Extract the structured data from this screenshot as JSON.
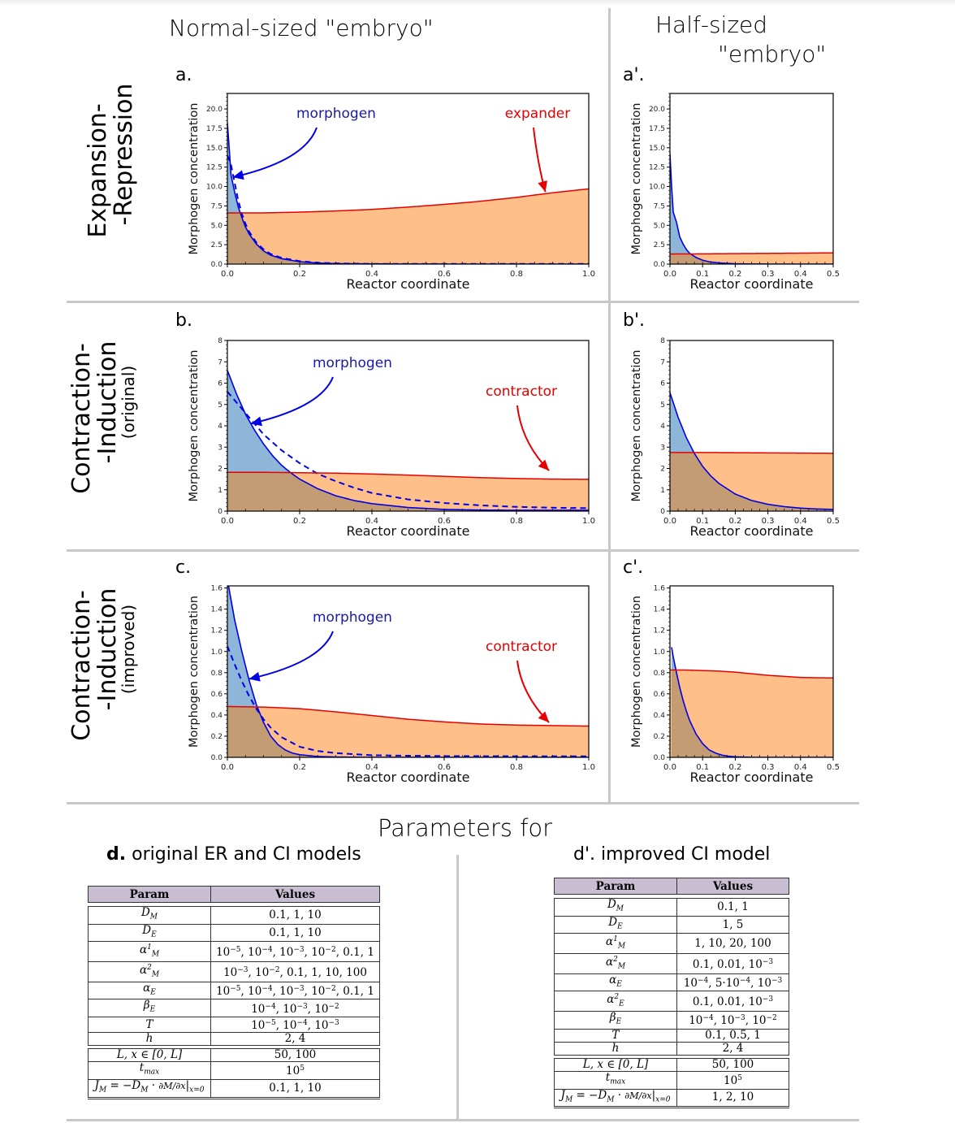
{
  "headers": {
    "normal": "Normal-sized \"embryo\"",
    "half_line1": "Half-sized",
    "half_line2": "\"embryo\"",
    "parameters_for": "Parameters for"
  },
  "rows": [
    {
      "l1": "Expansion-",
      "l2": "-Repression",
      "l3": ""
    },
    {
      "l1": "Contraction-",
      "l2": "-Induction",
      "l3": "(original)"
    },
    {
      "l1": "Contraction-",
      "l2": "-Induction",
      "l3": "(improved)"
    }
  ],
  "colors": {
    "morphogen_line": "#0000e6",
    "morphogen_label": "#1a1aa6",
    "partner_line": "#e60000",
    "morphogen_fill": "#8db6d8",
    "partner_fill": "#ffbf88",
    "overlap_fill": "#c39c74",
    "table_header": "#c9bdd2"
  },
  "chart_data": [
    {
      "id": "a",
      "panel_label": "a.",
      "type": "area",
      "xlabel": "Reactor coordinate",
      "ylabel": "Morphogen concentration",
      "xlim": [
        0,
        1.0
      ],
      "ylim": [
        0,
        22
      ],
      "xticks": [
        "0.0",
        "0.2",
        "0.4",
        "0.6",
        "0.8",
        "1.0"
      ],
      "xtick_values": [
        0,
        0.2,
        0.4,
        0.6,
        0.8,
        1.0
      ],
      "yticks": [
        "0.0",
        "2.5",
        "5.0",
        "7.5",
        "10.0",
        "12.5",
        "15.0",
        "17.5",
        "20.0"
      ],
      "ytick_values": [
        0,
        2.5,
        5,
        7.5,
        10,
        12.5,
        15,
        17.5,
        20
      ],
      "annotations": [
        {
          "text": "morphogen",
          "color": "#1a1aa6",
          "points_to": [
            0.015,
            11.2
          ]
        },
        {
          "text": "expander",
          "color": "#e60000",
          "points_to": [
            0.88,
            9.3
          ]
        }
      ],
      "series": [
        {
          "name": "morphogen",
          "style": "solid",
          "fill": true,
          "x": [
            0,
            0.005,
            0.01,
            0.02,
            0.03,
            0.04,
            0.05,
            0.06,
            0.08,
            0.1,
            0.12,
            0.15,
            0.2,
            0.25,
            0.3,
            0.4,
            0.5,
            0.6,
            0.8,
            1.0
          ],
          "y": [
            18.2,
            15,
            11.5,
            9.3,
            7.4,
            6.0,
            4.8,
            3.9,
            2.6,
            1.7,
            1.15,
            0.7,
            0.3,
            0.13,
            0.06,
            0.02,
            0.01,
            0.0,
            0.0,
            0.0
          ]
        },
        {
          "name": "morphogen (dashed)",
          "style": "dashed",
          "fill": false,
          "x": [
            0,
            0.005,
            0.01,
            0.02,
            0.03,
            0.04,
            0.05,
            0.06,
            0.08,
            0.1,
            0.12,
            0.15,
            0.2,
            0.25,
            0.3,
            0.4,
            0.5,
            0.6,
            0.8,
            1.0
          ],
          "y": [
            14,
            13.5,
            12.8,
            10.5,
            8.2,
            6.5,
            5.2,
            4.2,
            2.8,
            1.9,
            1.3,
            0.8,
            0.38,
            0.18,
            0.09,
            0.03,
            0.02,
            0.02,
            0.02,
            0.02
          ]
        },
        {
          "name": "expander",
          "style": "solid",
          "fill": true,
          "x": [
            0,
            0.1,
            0.2,
            0.3,
            0.4,
            0.5,
            0.6,
            0.7,
            0.8,
            0.9,
            1.0
          ],
          "y": [
            6.6,
            6.6,
            6.7,
            6.85,
            7.05,
            7.35,
            7.7,
            8.1,
            8.6,
            9.2,
            9.7
          ]
        }
      ]
    },
    {
      "id": "a_prime",
      "panel_label": "a'.",
      "type": "area",
      "xlabel": "Reactor coordinate",
      "ylabel": "Morphogen concentration",
      "xlim": [
        0,
        0.5
      ],
      "ylim": [
        0,
        22
      ],
      "xticks": [
        "0.0",
        "0.1",
        "0.2",
        "0.3",
        "0.4",
        "0.5"
      ],
      "xtick_values": [
        0,
        0.1,
        0.2,
        0.3,
        0.4,
        0.5
      ],
      "yticks": [
        "0.0",
        "2.5",
        "5.0",
        "7.5",
        "10.0",
        "12.5",
        "15.0",
        "17.5",
        "20.0"
      ],
      "ytick_values": [
        0,
        2.5,
        5,
        7.5,
        10,
        12.5,
        15,
        17.5,
        20
      ],
      "annotations": [],
      "series": [
        {
          "name": "morphogen",
          "style": "solid",
          "fill": true,
          "x": [
            0,
            0.005,
            0.01,
            0.02,
            0.03,
            0.04,
            0.05,
            0.06,
            0.08,
            0.1,
            0.12,
            0.15,
            0.2,
            0.25,
            0.3,
            0.4,
            0.5
          ],
          "y": [
            14.2,
            10,
            6.7,
            5.4,
            3.5,
            2.6,
            1.9,
            1.4,
            0.85,
            0.5,
            0.3,
            0.15,
            0.04,
            0.01,
            0.0,
            0.0,
            0.0
          ]
        },
        {
          "name": "expander",
          "style": "solid",
          "fill": true,
          "x": [
            0,
            0.1,
            0.2,
            0.3,
            0.4,
            0.5
          ],
          "y": [
            1.3,
            1.32,
            1.35,
            1.38,
            1.41,
            1.45
          ]
        }
      ]
    },
    {
      "id": "b",
      "panel_label": "b.",
      "type": "area",
      "xlabel": "Reactor coordinate",
      "ylabel": "Morphogen concentration",
      "xlim": [
        0,
        1.0
      ],
      "ylim": [
        0,
        8
      ],
      "xticks": [
        "0.0",
        "0.2",
        "0.4",
        "0.6",
        "0.8",
        "1.0"
      ],
      "xtick_values": [
        0,
        0.2,
        0.4,
        0.6,
        0.8,
        1.0
      ],
      "yticks": [
        "0",
        "1",
        "2",
        "3",
        "4",
        "5",
        "6",
        "7",
        "8"
      ],
      "ytick_values": [
        0,
        1,
        2,
        3,
        4,
        5,
        6,
        7,
        8
      ],
      "annotations": [
        {
          "text": "morphogen",
          "color": "#1a1aa6",
          "points_to": [
            0.065,
            4.1
          ]
        },
        {
          "text": "contractor",
          "color": "#e60000",
          "points_to": [
            0.89,
            1.9
          ]
        }
      ],
      "series": [
        {
          "name": "morphogen",
          "style": "solid",
          "fill": true,
          "x": [
            0,
            0.025,
            0.05,
            0.075,
            0.1,
            0.125,
            0.15,
            0.175,
            0.2,
            0.25,
            0.3,
            0.35,
            0.4,
            0.5,
            0.6,
            0.7,
            0.8,
            1.0
          ],
          "y": [
            6.6,
            5.5,
            4.55,
            3.8,
            3.15,
            2.6,
            2.15,
            1.8,
            1.5,
            1.05,
            0.72,
            0.5,
            0.35,
            0.17,
            0.08,
            0.05,
            0.04,
            0.04
          ]
        },
        {
          "name": "morphogen (dashed)",
          "style": "dashed",
          "fill": false,
          "x": [
            0,
            0.05,
            0.1,
            0.15,
            0.2,
            0.25,
            0.3,
            0.35,
            0.4,
            0.5,
            0.6,
            0.7,
            0.8,
            0.9,
            1.0
          ],
          "y": [
            5.6,
            4.6,
            3.6,
            2.85,
            2.25,
            1.75,
            1.4,
            1.1,
            0.85,
            0.55,
            0.38,
            0.27,
            0.2,
            0.16,
            0.14
          ]
        },
        {
          "name": "contractor",
          "style": "solid",
          "fill": true,
          "x": [
            0,
            0.1,
            0.2,
            0.3,
            0.4,
            0.5,
            0.6,
            0.7,
            0.8,
            0.9,
            1.0
          ],
          "y": [
            1.82,
            1.82,
            1.8,
            1.78,
            1.74,
            1.69,
            1.63,
            1.57,
            1.53,
            1.5,
            1.49
          ]
        }
      ]
    },
    {
      "id": "b_prime",
      "panel_label": "b'.",
      "type": "area",
      "xlabel": "Reactor coordinate",
      "ylabel": "Morphogen concentration",
      "xlim": [
        0,
        0.5
      ],
      "ylim": [
        0,
        8
      ],
      "xticks": [
        "0.0",
        "0.1",
        "0.2",
        "0.3",
        "0.4",
        "0.5"
      ],
      "xtick_values": [
        0,
        0.1,
        0.2,
        0.3,
        0.4,
        0.5
      ],
      "yticks": [
        "0",
        "1",
        "2",
        "3",
        "4",
        "5",
        "6",
        "7",
        "8"
      ],
      "ytick_values": [
        0,
        1,
        2,
        3,
        4,
        5,
        6,
        7,
        8
      ],
      "annotations": [],
      "series": [
        {
          "name": "morphogen",
          "style": "solid",
          "fill": true,
          "x": [
            0,
            0.025,
            0.05,
            0.075,
            0.1,
            0.125,
            0.15,
            0.2,
            0.25,
            0.3,
            0.35,
            0.4,
            0.45,
            0.5
          ],
          "y": [
            5.55,
            4.4,
            3.45,
            2.7,
            2.1,
            1.65,
            1.3,
            0.8,
            0.5,
            0.32,
            0.21,
            0.14,
            0.1,
            0.08
          ]
        },
        {
          "name": "contractor",
          "style": "solid",
          "fill": true,
          "x": [
            0,
            0.1,
            0.2,
            0.3,
            0.4,
            0.5
          ],
          "y": [
            2.75,
            2.75,
            2.74,
            2.73,
            2.72,
            2.71
          ]
        }
      ]
    },
    {
      "id": "c",
      "panel_label": "c.",
      "type": "area",
      "xlabel": "Reactor coordinate",
      "ylabel": "Morphogen concentration",
      "xlim": [
        0,
        1.0
      ],
      "ylim": [
        0,
        1.62
      ],
      "xticks": [
        "0.0",
        "0.2",
        "0.4",
        "0.6",
        "0.8",
        "1.0"
      ],
      "xtick_values": [
        0,
        0.2,
        0.4,
        0.6,
        0.8,
        1.0
      ],
      "yticks": [
        "0.0",
        "0.2",
        "0.4",
        "0.6",
        "0.8",
        "1.0",
        "1.2",
        "1.4",
        "1.6"
      ],
      "ytick_values": [
        0,
        0.2,
        0.4,
        0.6,
        0.8,
        1.0,
        1.2,
        1.4,
        1.6
      ],
      "annotations": [
        {
          "text": "morphogen",
          "color": "#1a1aa6",
          "points_to": [
            0.06,
            0.74
          ]
        },
        {
          "text": "contractor",
          "color": "#e60000",
          "points_to": [
            0.89,
            0.33
          ]
        }
      ],
      "series": [
        {
          "name": "morphogen",
          "style": "solid",
          "fill": true,
          "x": [
            0,
            0.02,
            0.04,
            0.06,
            0.08,
            0.1,
            0.12,
            0.14,
            0.16,
            0.18,
            0.2,
            0.25,
            0.3,
            0.4,
            0.6,
            1.0
          ],
          "y": [
            1.68,
            1.3,
            1.0,
            0.73,
            0.5,
            0.33,
            0.2,
            0.12,
            0.07,
            0.04,
            0.025,
            0.008,
            0.003,
            0.0,
            0.0,
            0.0
          ]
        },
        {
          "name": "morphogen (dashed)",
          "style": "dashed",
          "fill": false,
          "x": [
            0,
            0.02,
            0.04,
            0.06,
            0.08,
            0.1,
            0.12,
            0.15,
            0.2,
            0.25,
            0.3,
            0.4,
            0.5,
            0.6,
            0.8,
            1.0
          ],
          "y": [
            1.05,
            0.88,
            0.72,
            0.58,
            0.46,
            0.36,
            0.28,
            0.19,
            0.1,
            0.06,
            0.04,
            0.02,
            0.015,
            0.012,
            0.01,
            0.01
          ]
        },
        {
          "name": "contractor",
          "style": "solid",
          "fill": true,
          "x": [
            0,
            0.1,
            0.2,
            0.3,
            0.4,
            0.5,
            0.6,
            0.7,
            0.8,
            0.9,
            1.0
          ],
          "y": [
            0.48,
            0.475,
            0.46,
            0.43,
            0.395,
            0.36,
            0.335,
            0.315,
            0.305,
            0.3,
            0.295
          ]
        }
      ]
    },
    {
      "id": "c_prime",
      "panel_label": "c'.",
      "type": "area",
      "xlabel": "Reactor coordinate",
      "ylabel": "Morphogen concentration",
      "xlim": [
        0,
        0.5
      ],
      "ylim": [
        0,
        1.62
      ],
      "xticks": [
        "0.0",
        "0.1",
        "0.2",
        "0.3",
        "0.4",
        "0.5"
      ],
      "xtick_values": [
        0,
        0.1,
        0.2,
        0.3,
        0.4,
        0.5
      ],
      "yticks": [
        "0.0",
        "0.2",
        "0.4",
        "0.6",
        "0.8",
        "1.0",
        "1.2",
        "1.4",
        "1.6"
      ],
      "ytick_values": [
        0,
        0.2,
        0.4,
        0.6,
        0.8,
        1.0,
        1.2,
        1.4,
        1.6
      ],
      "annotations": [],
      "series": [
        {
          "name": "morphogen",
          "style": "solid",
          "fill": true,
          "x": [
            0.005,
            0.01,
            0.02,
            0.03,
            0.04,
            0.05,
            0.06,
            0.08,
            0.1,
            0.12,
            0.14,
            0.16,
            0.18,
            0.2,
            0.25,
            0.3,
            0.5
          ],
          "y": [
            1.04,
            0.95,
            0.8,
            0.66,
            0.54,
            0.44,
            0.35,
            0.22,
            0.13,
            0.07,
            0.04,
            0.02,
            0.01,
            0.005,
            0.0,
            0.0,
            0.0
          ]
        },
        {
          "name": "contractor",
          "style": "solid",
          "fill": true,
          "x": [
            0,
            0.05,
            0.1,
            0.15,
            0.2,
            0.25,
            0.3,
            0.35,
            0.4,
            0.45,
            0.5
          ],
          "y": [
            0.825,
            0.825,
            0.82,
            0.815,
            0.805,
            0.79,
            0.775,
            0.765,
            0.755,
            0.752,
            0.75
          ]
        }
      ]
    }
  ],
  "tables": {
    "d": {
      "label": "d.",
      "title": "original ER and CI models",
      "columns": [
        "Param",
        "Values"
      ],
      "rows": [
        {
          "param": "D<sub>M</sub>",
          "values": "0.1, 1, 10"
        },
        {
          "param": "D<sub>E</sub>",
          "values": "0.1, 1, 10"
        },
        {
          "param": "α<sup>1</sup><sub>M</sub>",
          "values": "10<sup>−5</sup>, 10<sup>−4</sup>, 10<sup>−3</sup>, 10<sup>−2</sup>, 0.1, 1"
        },
        {
          "param": "α<sup>2</sup><sub>M</sub>",
          "values": "10<sup>−3</sup>, 10<sup>−2</sup>, 0.1, 1, 10, 100"
        },
        {
          "param": "α<sub>E</sub>",
          "values": "10<sup>−5</sup>, 10<sup>−4</sup>, 10<sup>−3</sup>, 10<sup>−2</sup>, 0.1, 1"
        },
        {
          "param": "β<sub>E</sub>",
          "values": "10<sup>−4</sup>, 10<sup>−3</sup>, 10<sup>−2</sup>"
        },
        {
          "param": "T",
          "values": "10<sup>−5</sup>, 10<sup>−4</sup>, 10<sup>−3</sup>"
        },
        {
          "param": "h",
          "values": "2, 4"
        }
      ],
      "extra_rows": [
        {
          "param": "L, x ∈ [0, L]",
          "values": "50, 100"
        },
        {
          "param": "t<sub>max</sub>",
          "values": "10<sup>5</sup>"
        },
        {
          "param": "J<sub>M</sub> = −D<sub>M</sub> · <small>∂M/∂x</small>|<sub>x=0</sub>",
          "values": "0.1, 1, 10"
        }
      ]
    },
    "d_prime": {
      "label": "d'.",
      "title": "improved CI model",
      "columns": [
        "Param",
        "Values"
      ],
      "rows": [
        {
          "param": "D<sub>M</sub>",
          "values": "0.1, 1"
        },
        {
          "param": "D<sub>E</sub>",
          "values": "1, 5"
        },
        {
          "param": "α<sup>1</sup><sub>M</sub>",
          "values": "1, 10, 20, 100"
        },
        {
          "param": "α<sup>2</sup><sub>M</sub>",
          "values": "0.1, 0.01, 10<sup>−3</sup>"
        },
        {
          "param": "α<sub>E</sub>",
          "values": "10<sup>−4</sup>, 5·10<sup>−4</sup>, 10<sup>−3</sup>"
        },
        {
          "param": "α<sup>2</sup><sub>E</sub>",
          "values": "0.1, 0.01, 10<sup>−3</sup>"
        },
        {
          "param": "β<sub>E</sub>",
          "values": "10<sup>−4</sup>, 10<sup>−3</sup>, 10<sup>−2</sup>"
        },
        {
          "param": "T",
          "values": "0.1, 0.5, 1"
        },
        {
          "param": "h",
          "values": "2, 4"
        }
      ],
      "extra_rows": [
        {
          "param": "L, x ∈ [0, L]",
          "values": "50, 100"
        },
        {
          "param": "t<sub>max</sub>",
          "values": "10<sup>5</sup>"
        },
        {
          "param": "J<sub>M</sub> = −D<sub>M</sub> · <small>∂M/∂x</small>|<sub>x=0</sub>",
          "values": "1, 2, 10"
        }
      ]
    }
  }
}
